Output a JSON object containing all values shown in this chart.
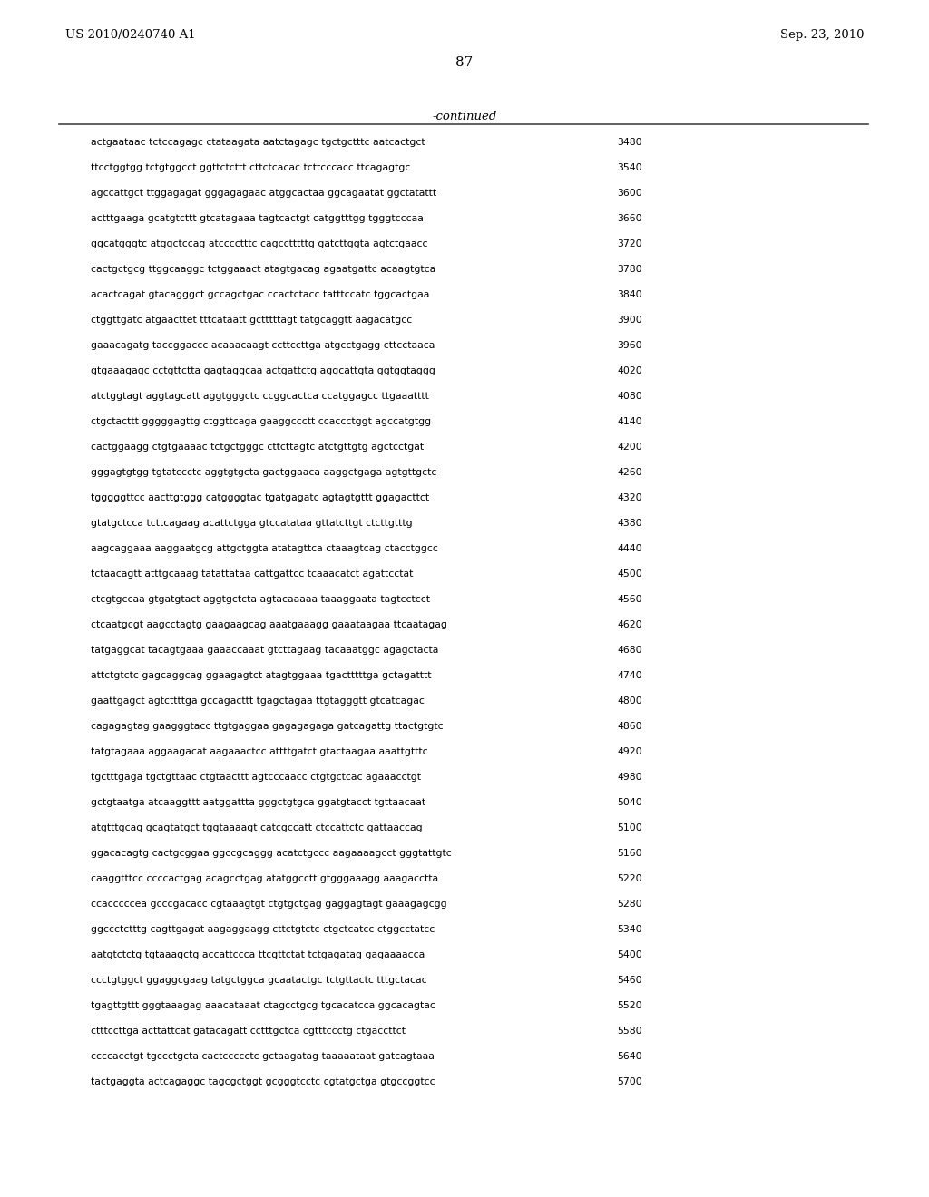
{
  "header_left": "US 2010/0240740 A1",
  "header_right": "Sep. 23, 2010",
  "page_number": "87",
  "continued_label": "-continued",
  "background_color": "#ffffff",
  "text_color": "#000000",
  "sequence_lines": [
    [
      "actgaataac tctccagagc ctataagata aatctagagc tgctgctttc aatcactgct",
      "3480"
    ],
    [
      "ttcctggtgg tctgtggcct ggttctcttt cttctcacac tcttcccacc ttcagagtgc",
      "3540"
    ],
    [
      "agccattgct ttggagagat gggagagaac atggcactaa ggcagaatat ggctatattt",
      "3600"
    ],
    [
      "actttgaaga gcatgtcttt gtcatagaaa tagtcactgt catggtttgg tgggtcccaa",
      "3660"
    ],
    [
      "ggcatgggtc atggctccag atcccctttc cagcctttttg gatcttggta agtctgaacc",
      "3720"
    ],
    [
      "cactgctgcg ttggcaaggc tctggaaact atagtgacag agaatgattc acaagtgtca",
      "3780"
    ],
    [
      "acactcagat gtacagggct gccagctgac ccactctacc tatttccatc tggcactgaa",
      "3840"
    ],
    [
      "ctggttgatc atgaacttet tttcataatt gctttttagt tatgcaggtt aagacatgcc",
      "3900"
    ],
    [
      "gaaacagatg taccggaccc acaaacaagt ccttccttga atgcctgagg cttcctaaca",
      "3960"
    ],
    [
      "gtgaaagagc cctgttctta gagtaggcaa actgattctg aggcattgta ggtggtaggg",
      "4020"
    ],
    [
      "atctggtagt aggtagcatt aggtgggctc ccggcactca ccatggagcc ttgaaatttt",
      "4080"
    ],
    [
      "ctgctacttt gggggagttg ctggttcaga gaaggccctt ccaccctggt agccatgtgg",
      "4140"
    ],
    [
      "cactggaagg ctgtgaaaac tctgctgggc cttcttagtc atctgttgtg agctcctgat",
      "4200"
    ],
    [
      "gggagtgtgg tgtatccctc aggtgtgcta gactggaaca aaggctgaga agtgttgctc",
      "4260"
    ],
    [
      "tgggggttcc aacttgtggg catggggtac tgatgagatc agtagtgttt ggagacttct",
      "4320"
    ],
    [
      "gtatgctcca tcttcagaag acattctgga gtccatataa gttatcttgt ctcttgtttg",
      "4380"
    ],
    [
      "aagcaggaaa aaggaatgcg attgctggta atatagttca ctaaagtcag ctacctggcc",
      "4440"
    ],
    [
      "tctaacagtt atttgcaaag tatattataa cattgattcc tcaaacatct agattcctat",
      "4500"
    ],
    [
      "ctcgtgccaa gtgatgtact aggtgctcta agtacaaaaa taaaggaata tagtcctcct",
      "4560"
    ],
    [
      "ctcaatgcgt aagcctagtg gaagaagcag aaatgaaagg gaaataagaa ttcaatagag",
      "4620"
    ],
    [
      "tatgaggcat tacagtgaaa gaaaccaaat gtcttagaag tacaaatggc agagctacta",
      "4680"
    ],
    [
      "attctgtctc gagcaggcag ggaagagtct atagtggaaa tgactttttga gctagatttt",
      "4740"
    ],
    [
      "gaattgagct agtcttttga gccagacttt tgagctagaa ttgtagggtt gtcatcagac",
      "4800"
    ],
    [
      "cagagagtag gaagggtacc ttgtgaggaa gagagagaga gatcagattg ttactgtgtc",
      "4860"
    ],
    [
      "tatgtagaaa aggaagacat aagaaactcc attttgatct gtactaagaa aaattgtttc",
      "4920"
    ],
    [
      "tgctttgaga tgctgttaac ctgtaacttt agtcccaacc ctgtgctcac agaaacctgt",
      "4980"
    ],
    [
      "gctgtaatga atcaaggttt aatggattta gggctgtgca ggatgtacct tgttaacaat",
      "5040"
    ],
    [
      "atgtttgcag gcagtatgct tggtaaaagt catcgccatt ctccattctc gattaaccag",
      "5100"
    ],
    [
      "ggacacagtg cactgcggaa ggccgcaggg acatctgccc aagaaaagcct gggtattgtc",
      "5160"
    ],
    [
      "caaggtttcc ccccactgag acagcctgag atatggcctt gtgggaaagg aaagacctta",
      "5220"
    ],
    [
      "ccacccccea gcccgacacc cgtaaagtgt ctgtgctgag gaggagtagt gaaagagcgg",
      "5280"
    ],
    [
      "ggccctctttg cagttgagat aagaggaagg cttctgtctc ctgctcatcc ctggcctatcc",
      "5340"
    ],
    [
      "aatgtctctg tgtaaagctg accattccca ttcgttctat tctgagatag gagaaaacca",
      "5400"
    ],
    [
      "ccctgtggct ggaggcgaag tatgctggca gcaatactgc tctgttactc tttgctacac",
      "5460"
    ],
    [
      "tgagttgttt gggtaaagag aaacataaat ctagcctgcg tgcacatcca ggcacagtac",
      "5520"
    ],
    [
      "ctttccttga acttattcat gatacagatt cctttgctca cgtttccctg ctgaccttct",
      "5580"
    ],
    [
      "ccccacctgt tgccctgcta cactccccctc gctaagatag taaaaataat gatcagtaaa",
      "5640"
    ],
    [
      "tactgaggta actcagaggc tagcgctggt gcgggtcctc cgtatgctga gtgccggtcc",
      "5700"
    ]
  ]
}
